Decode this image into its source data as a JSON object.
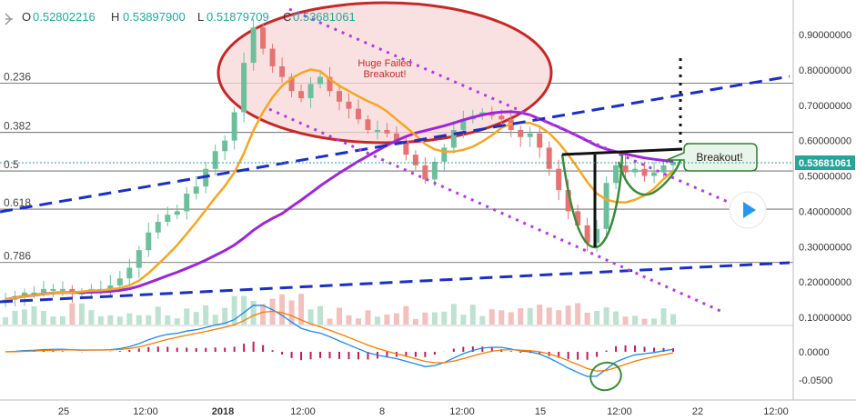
{
  "chart_data": {
    "type": "candlestick",
    "ohlc_header": {
      "o_label": "O",
      "o_value": "0.52802216",
      "h_label": "H",
      "h_value": "0.53897900",
      "l_label": "L",
      "l_value": "0.51879709",
      "c_label": "C",
      "c_value": "0.53681061"
    },
    "current_price_label": "0.53681061",
    "y_axis": {
      "ticks": [
        "0.90000000",
        "0.80000000",
        "0.70000000",
        "0.60000000",
        "0.50000000",
        "0.40000000",
        "0.30000000",
        "0.20000000",
        "0.10000000"
      ],
      "tick_values": [
        0.9,
        0.8,
        0.7,
        0.6,
        0.5,
        0.4,
        0.3,
        0.2,
        0.1
      ],
      "range": [
        0.07,
        1.0
      ]
    },
    "macd_axis": {
      "ticks": [
        "0.0000",
        "-0.0500"
      ],
      "tick_values": [
        0.0,
        -0.05
      ]
    },
    "x_axis": {
      "ticks": [
        "25",
        "12:00",
        "2018",
        "12:00",
        "8",
        "12:00",
        "15",
        "12:00",
        "22",
        "12:00"
      ]
    },
    "fib_levels": [
      {
        "label": "0.236",
        "value": 0.762
      },
      {
        "label": "0.382",
        "value": 0.623
      },
      {
        "label": "0.5",
        "value": 0.514
      },
      {
        "label": "0.618",
        "value": 0.406
      },
      {
        "label": "0.786",
        "value": 0.255
      }
    ],
    "annotations": {
      "failed_breakout": "Huge Failed Breakout!",
      "breakout": "Breakout!"
    },
    "close_series": [
      0.15,
      0.16,
      0.17,
      0.17,
      0.18,
      0.18,
      0.18,
      0.17,
      0.17,
      0.18,
      0.18,
      0.19,
      0.21,
      0.24,
      0.29,
      0.34,
      0.37,
      0.39,
      0.4,
      0.45,
      0.47,
      0.52,
      0.57,
      0.6,
      0.68,
      0.82,
      0.92,
      0.86,
      0.81,
      0.78,
      0.74,
      0.72,
      0.76,
      0.78,
      0.74,
      0.71,
      0.69,
      0.66,
      0.63,
      0.63,
      0.62,
      0.6,
      0.56,
      0.53,
      0.49,
      0.54,
      0.58,
      0.63,
      0.66,
      0.67,
      0.68,
      0.67,
      0.66,
      0.63,
      0.61,
      0.62,
      0.58,
      0.52,
      0.46,
      0.4,
      0.36,
      0.31,
      0.35,
      0.48,
      0.53,
      0.51,
      0.52,
      0.5,
      0.51,
      0.53,
      0.54
    ],
    "colors": {
      "bull": "#6dbf9c",
      "bear": "#e57373",
      "ma_short": "#f5a623",
      "ma_long": "#9b27d6",
      "trendline_dash": "#1a2fc4",
      "channel_dots": "#b13de0",
      "circle_red": "#c62828",
      "circle_red_fill": "#f8d7d7",
      "cup_green": "#3a8a3a",
      "callout_border": "#2e7d32",
      "callout_fill": "#e8f5e9",
      "price_tag": "#26a69a",
      "macd_line": "#1e88e5",
      "signal_line": "#f57c00",
      "histogram": "#c2185b",
      "breakout_black": "#111111"
    }
  }
}
